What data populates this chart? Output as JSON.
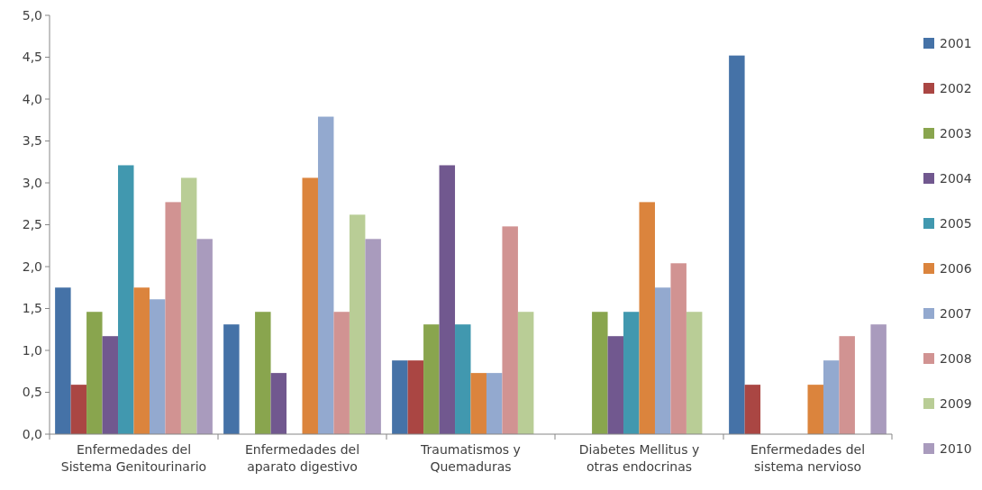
{
  "chart_data": {
    "type": "bar",
    "categories": [
      "Enfermedades del Sistema Genitourinario",
      "Enfermedades del aparato digestivo",
      "Traumatismos y Quemaduras",
      "Diabetes Mellitus y otras endocrinas",
      "Enfermedades del sistema nervioso"
    ],
    "series": [
      {
        "name": "2001",
        "color": "#4572a7",
        "values": [
          1.75,
          1.31,
          0.88,
          null,
          4.52
        ]
      },
      {
        "name": "2002",
        "color": "#aa4643",
        "values": [
          0.59,
          null,
          0.88,
          null,
          0.59
        ]
      },
      {
        "name": "2003",
        "color": "#89a54e",
        "values": [
          1.46,
          1.46,
          1.31,
          1.46,
          null
        ]
      },
      {
        "name": "2004",
        "color": "#71588f",
        "values": [
          1.17,
          0.73,
          3.21,
          1.17,
          null
        ]
      },
      {
        "name": "2005",
        "color": "#4198af",
        "values": [
          3.21,
          null,
          1.31,
          1.46,
          null
        ]
      },
      {
        "name": "2006",
        "color": "#db843d",
        "values": [
          1.75,
          3.06,
          0.73,
          2.77,
          0.59
        ]
      },
      {
        "name": "2007",
        "color": "#93a9cf",
        "values": [
          1.61,
          3.79,
          0.73,
          1.75,
          0.88
        ]
      },
      {
        "name": "2008",
        "color": "#d19392",
        "values": [
          2.77,
          1.46,
          2.48,
          2.04,
          1.17
        ]
      },
      {
        "name": "2009",
        "color": "#b9cd96",
        "values": [
          3.06,
          2.62,
          1.46,
          1.46,
          null
        ]
      },
      {
        "name": "2010",
        "color": "#a99bbd",
        "values": [
          2.33,
          2.33,
          null,
          null,
          1.31
        ]
      }
    ],
    "ylim": [
      0,
      5
    ],
    "yticks": [
      {
        "value": 0,
        "label": "0,0"
      },
      {
        "value": 0.5,
        "label": "0,5"
      },
      {
        "value": 1,
        "label": "1,0"
      },
      {
        "value": 1.5,
        "label": "1,5"
      },
      {
        "value": 2,
        "label": "2,0"
      },
      {
        "value": 2.5,
        "label": "2,5"
      },
      {
        "value": 3,
        "label": "3,0"
      },
      {
        "value": 3.5,
        "label": "3,5"
      },
      {
        "value": 4,
        "label": "4,0"
      },
      {
        "value": 4.5,
        "label": "4,5"
      },
      {
        "value": 5,
        "label": "5,0"
      }
    ],
    "grid": false,
    "legend": "right"
  }
}
